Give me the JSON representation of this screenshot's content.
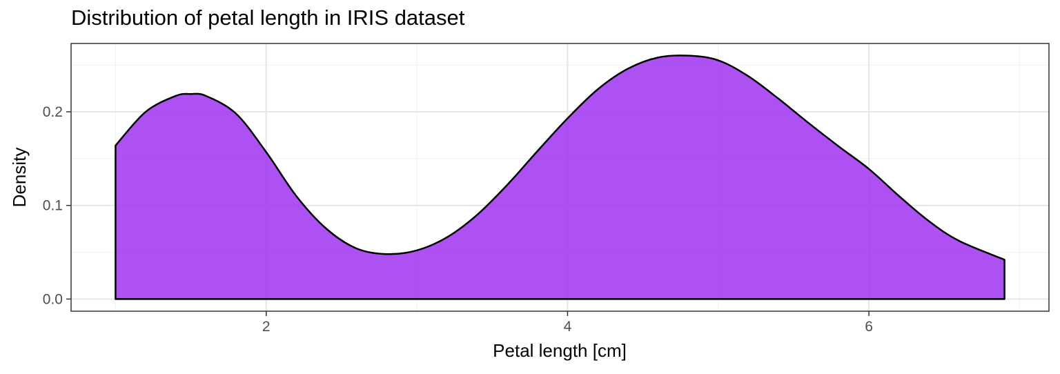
{
  "chart_data": {
    "type": "area",
    "title": "Distribution of petal length in IRIS dataset",
    "xlabel": "Petal length [cm]",
    "ylabel": "Density",
    "xlim": [
      0.705,
      7.195
    ],
    "ylim": [
      -0.013,
      0.273
    ],
    "xticks": [
      2,
      4,
      6
    ],
    "xtick_labels": [
      "2",
      "4",
      "6"
    ],
    "yticks": [
      0.0,
      0.1,
      0.2
    ],
    "ytick_labels": [
      "0.0",
      "0.1",
      "0.2"
    ],
    "grid": true,
    "legend": "none",
    "fill_color": "#a033f0",
    "fill_opacity": 0.85,
    "line_color": "#000000",
    "x": [
      1.0,
      1.2,
      1.4,
      1.5,
      1.6,
      1.8,
      2.0,
      2.2,
      2.4,
      2.6,
      2.8,
      3.0,
      3.2,
      3.4,
      3.6,
      3.8,
      4.0,
      4.2,
      4.4,
      4.6,
      4.8,
      5.0,
      5.2,
      5.4,
      5.6,
      5.8,
      6.0,
      6.2,
      6.4,
      6.6,
      6.9
    ],
    "values": [
      0.164,
      0.2,
      0.217,
      0.219,
      0.217,
      0.198,
      0.157,
      0.11,
      0.075,
      0.054,
      0.048,
      0.052,
      0.066,
      0.09,
      0.122,
      0.158,
      0.193,
      0.224,
      0.246,
      0.258,
      0.26,
      0.255,
      0.238,
      0.214,
      0.188,
      0.163,
      0.139,
      0.11,
      0.083,
      0.062,
      0.042
    ]
  }
}
